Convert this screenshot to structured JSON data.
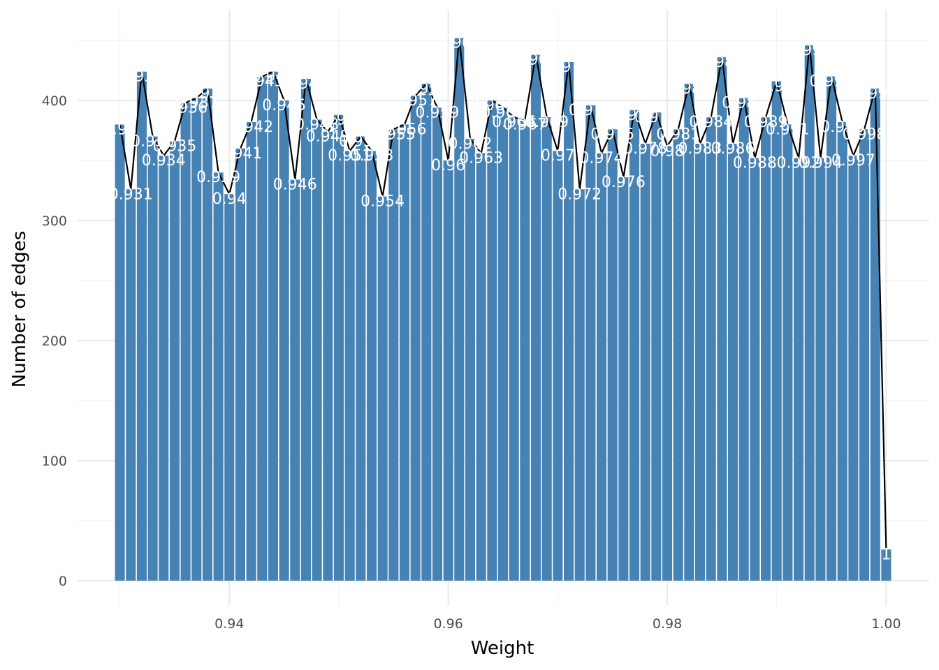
{
  "chart_data": {
    "type": "bar",
    "title": "",
    "xlabel": "Weight",
    "ylabel": "Number of edges",
    "xlim": [
      0.9235,
      1.0055
    ],
    "ylim": [
      -22,
      480
    ],
    "x_ticks": [
      0.94,
      0.96,
      0.98,
      1.0
    ],
    "x_tick_labels": [
      "0.94",
      "0.96",
      "0.98",
      "1.00"
    ],
    "y_ticks": [
      0,
      100,
      200,
      300,
      400
    ],
    "y_tick_labels": [
      "0",
      "100",
      "200",
      "300",
      "400"
    ],
    "grid": true,
    "legend": "none",
    "bar_color": "#4682B4",
    "line_color": "#000000",
    "label_color": "#ffffff",
    "x": [
      0.93,
      0.931,
      0.932,
      0.933,
      0.934,
      0.935,
      0.936,
      0.937,
      0.938,
      0.939,
      0.94,
      0.941,
      0.942,
      0.943,
      0.944,
      0.945,
      0.946,
      0.947,
      0.948,
      0.949,
      0.95,
      0.951,
      0.952,
      0.953,
      0.954,
      0.955,
      0.956,
      0.957,
      0.958,
      0.959,
      0.96,
      0.961,
      0.962,
      0.963,
      0.964,
      0.965,
      0.966,
      0.967,
      0.968,
      0.969,
      0.97,
      0.971,
      0.972,
      0.973,
      0.974,
      0.975,
      0.976,
      0.977,
      0.978,
      0.979,
      0.98,
      0.981,
      0.982,
      0.983,
      0.984,
      0.985,
      0.986,
      0.987,
      0.988,
      0.989,
      0.99,
      0.991,
      0.992,
      0.993,
      0.994,
      0.995,
      0.996,
      0.997,
      0.998,
      0.999,
      1.0
    ],
    "values": [
      380,
      326,
      424,
      370,
      354,
      366,
      398,
      402,
      410,
      340,
      322,
      360,
      382,
      420,
      424,
      400,
      334,
      418,
      384,
      374,
      388,
      358,
      370,
      358,
      320,
      376,
      380,
      404,
      414,
      394,
      350,
      452,
      368,
      356,
      400,
      394,
      386,
      384,
      438,
      386,
      358,
      432,
      326,
      396,
      356,
      376,
      336,
      392,
      364,
      390,
      362,
      376,
      414,
      364,
      386,
      436,
      364,
      402,
      352,
      386,
      416,
      380,
      352,
      446,
      352,
      420,
      382,
      354,
      376,
      410,
      26
    ],
    "labels": [
      "0.93",
      "0.931",
      "0.932",
      "0.933",
      "0.934",
      "0.935",
      "0.936",
      "0.937",
      "0.938",
      "0.939",
      "0.94",
      "0.941",
      "0.942",
      "0.943",
      "0.944",
      "0.945",
      "0.946",
      "0.947",
      "0.948",
      "0.949",
      "0.95",
      "0.951",
      "0.952",
      "0.953",
      "0.954",
      "0.955",
      "0.956",
      "0.957",
      "0.958",
      "0.959",
      "0.96",
      "0.961",
      "0.962",
      "0.963",
      "0.964",
      "0.965",
      "0.966",
      "0.967",
      "0.968",
      "0.969",
      "0.97",
      "0.971",
      "0.972",
      "0.973",
      "0.974",
      "0.975",
      "0.976",
      "0.977",
      "0.978",
      "0.979",
      "0.98",
      "0.981",
      "0.982",
      "0.983",
      "0.984",
      "0.985",
      "0.986",
      "0.987",
      "0.988",
      "0.989",
      "0.99",
      "0.991",
      "0.992",
      "0.993",
      "0.994",
      "0.995",
      "0.996",
      "0.997",
      "0.998",
      "0.999",
      "1"
    ]
  }
}
